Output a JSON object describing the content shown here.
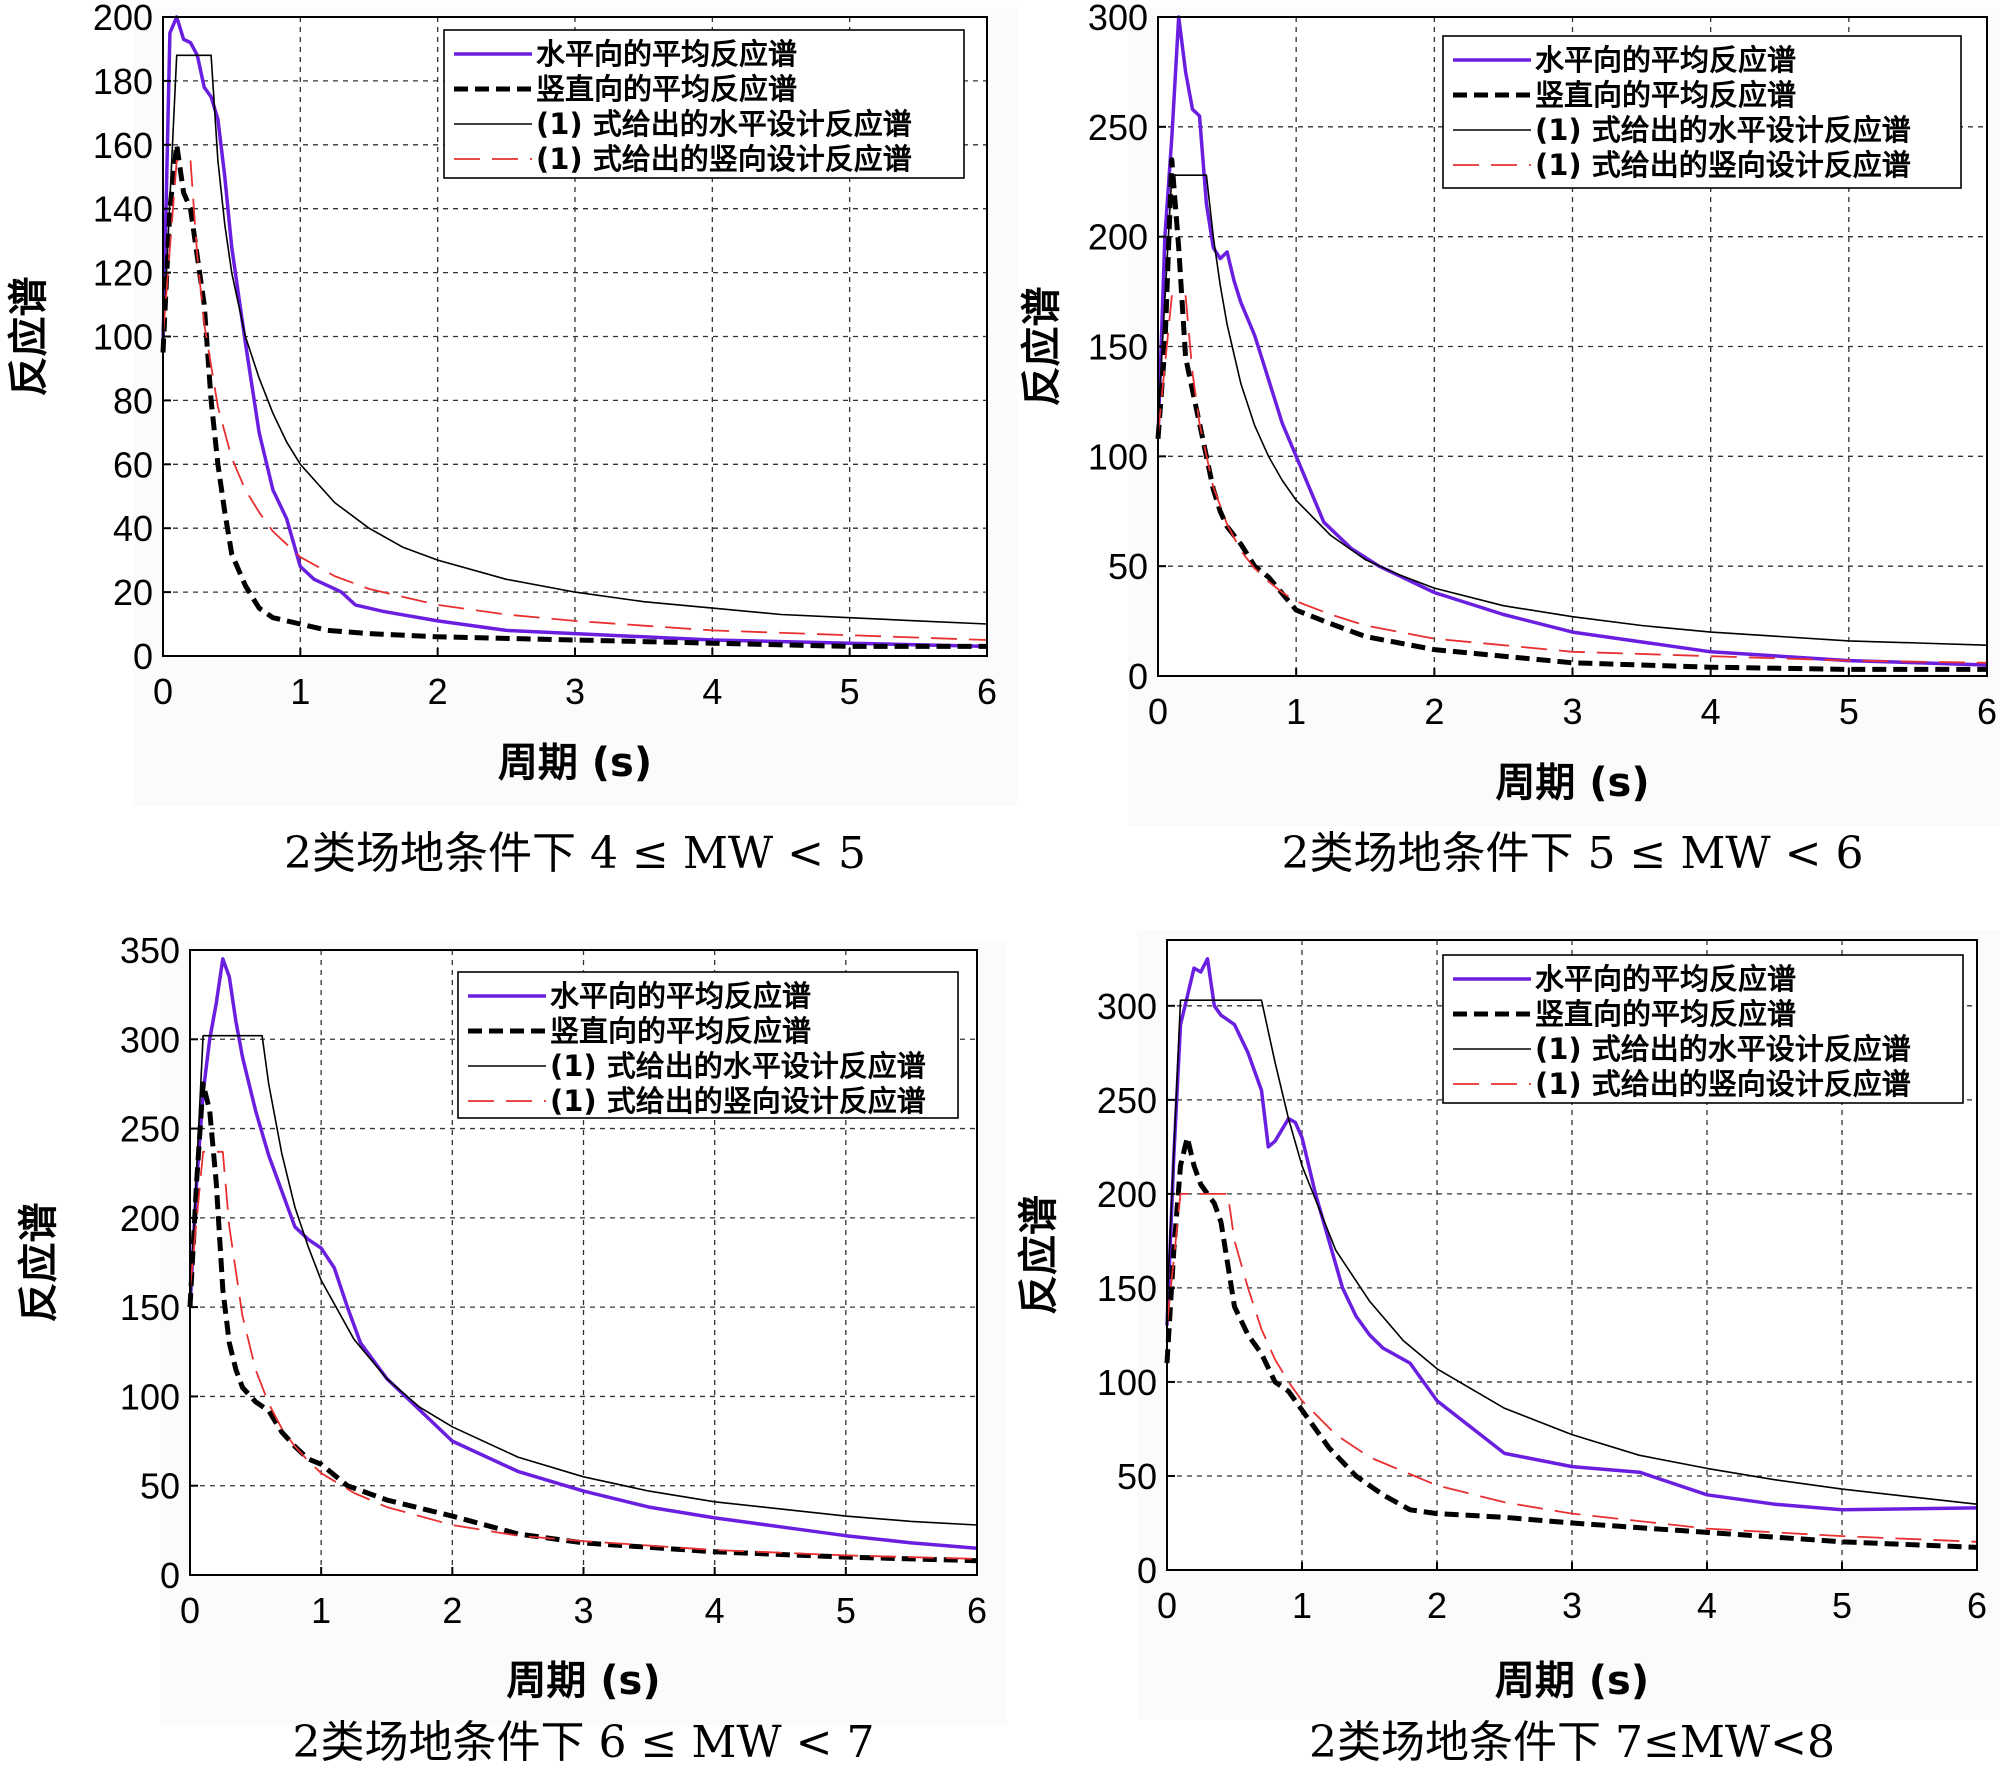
{
  "chart_data": [
    {
      "type": "line",
      "caption": "2类场地条件下 4 ≤ MW < 5",
      "xlabel": "周期 (s)",
      "ylabel": "反应谱",
      "xlim": [
        0,
        6
      ],
      "ylim": [
        0,
        200
      ],
      "xticks": [
        "0",
        "1",
        "2",
        "3",
        "4",
        "5",
        "6"
      ],
      "yticks": [
        "0",
        "20",
        "40",
        "60",
        "80",
        "100",
        "120",
        "140",
        "160",
        "180",
        "200"
      ],
      "grid": true,
      "legend_position": "top-right",
      "series": [
        {
          "name": "水平向的平均反应谱",
          "color": "#6a1fe0",
          "style": "solid-thick",
          "x": [
            0,
            0.05,
            0.1,
            0.15,
            0.2,
            0.25,
            0.3,
            0.35,
            0.4,
            0.45,
            0.5,
            0.6,
            0.7,
            0.8,
            0.9,
            1.0,
            1.1,
            1.2,
            1.3,
            1.4,
            1.6,
            2.0,
            2.5,
            3.0,
            4.0,
            5.0,
            6.0
          ],
          "y": [
            97,
            195,
            200,
            193,
            192,
            188,
            178,
            175,
            168,
            150,
            128,
            98,
            70,
            52,
            43,
            28,
            24,
            22,
            20,
            16,
            14,
            11,
            8,
            7,
            5,
            4,
            3
          ]
        },
        {
          "name": "竖直向的平均反应谱",
          "color": "#000000",
          "style": "dashed-thick",
          "x": [
            0,
            0.05,
            0.1,
            0.15,
            0.2,
            0.25,
            0.3,
            0.35,
            0.4,
            0.45,
            0.5,
            0.6,
            0.7,
            0.8,
            1.0,
            1.2,
            1.5,
            2.0,
            3.0,
            4.0,
            5.0,
            6.0
          ],
          "y": [
            95,
            140,
            160,
            145,
            140,
            125,
            110,
            80,
            60,
            45,
            32,
            22,
            15,
            12,
            10,
            8,
            7,
            6,
            5,
            4,
            3,
            3
          ]
        },
        {
          "name": "(1) 式给出的水平设计反应谱",
          "color": "#000000",
          "style": "solid-thin",
          "x": [
            0,
            0.1,
            0.35,
            0.4,
            0.45,
            0.5,
            0.6,
            0.7,
            0.8,
            0.9,
            1.0,
            1.25,
            1.5,
            1.75,
            2.0,
            2.5,
            3.0,
            3.5,
            4.0,
            4.5,
            5.0,
            5.5,
            6.0
          ],
          "y": [
            97,
            188,
            188,
            155,
            135,
            120,
            100,
            87,
            76,
            67,
            60,
            48,
            40,
            34,
            30,
            24,
            20,
            17,
            15,
            13,
            12,
            11,
            10
          ]
        },
        {
          "name": "(1) 式给出的竖向设计反应谱",
          "color": "#e83030",
          "style": "dashed-thin",
          "x": [
            0,
            0.1,
            0.2,
            0.25,
            0.3,
            0.4,
            0.5,
            0.6,
            0.7,
            0.8,
            0.9,
            1.0,
            1.25,
            1.5,
            2.0,
            2.5,
            3.0,
            4.0,
            5.0,
            6.0
          ],
          "y": [
            100,
            155,
            155,
            125,
            104,
            78,
            62,
            52,
            45,
            39,
            35,
            31,
            25,
            21,
            16,
            13,
            11,
            8,
            6.5,
            5
          ]
        }
      ]
    },
    {
      "type": "line",
      "caption": "2类场地条件下 5 ≤ MW < 6",
      "xlabel": "周期 (s)",
      "ylabel": "反应谱",
      "xlim": [
        0,
        6
      ],
      "ylim": [
        0,
        300
      ],
      "xticks": [
        "0",
        "1",
        "2",
        "3",
        "4",
        "5",
        "6"
      ],
      "yticks": [
        "0",
        "50",
        "100",
        "150",
        "200",
        "250",
        "300"
      ],
      "grid": true,
      "legend_position": "top-right",
      "series": [
        {
          "name": "水平向的平均反应谱",
          "color": "#6a1fe0",
          "style": "solid-thick",
          "x": [
            0,
            0.05,
            0.1,
            0.15,
            0.2,
            0.25,
            0.3,
            0.35,
            0.4,
            0.45,
            0.5,
            0.55,
            0.6,
            0.7,
            0.8,
            0.9,
            1.0,
            1.1,
            1.2,
            1.4,
            1.6,
            2.0,
            2.5,
            3.0,
            4.0,
            5.0,
            6.0
          ],
          "y": [
            108,
            200,
            245,
            300,
            275,
            258,
            255,
            215,
            195,
            190,
            193,
            180,
            170,
            155,
            135,
            115,
            100,
            85,
            70,
            58,
            50,
            38,
            28,
            20,
            11,
            7,
            5
          ]
        },
        {
          "name": "竖直向的平均反应谱",
          "color": "#000000",
          "style": "dashed-thick",
          "x": [
            0,
            0.05,
            0.1,
            0.15,
            0.2,
            0.25,
            0.3,
            0.35,
            0.4,
            0.45,
            0.5,
            0.6,
            0.7,
            0.8,
            1.0,
            1.2,
            1.5,
            2.0,
            3.0,
            4.0,
            5.0,
            6.0
          ],
          "y": [
            108,
            150,
            235,
            195,
            145,
            130,
            115,
            100,
            85,
            75,
            68,
            60,
            50,
            45,
            30,
            25,
            18,
            12,
            6,
            4,
            3,
            3
          ]
        },
        {
          "name": "(1) 式给出的水平设计反应谱",
          "color": "#000000",
          "style": "solid-thin",
          "x": [
            0,
            0.1,
            0.35,
            0.4,
            0.45,
            0.5,
            0.6,
            0.7,
            0.8,
            0.9,
            1.0,
            1.25,
            1.5,
            1.75,
            2.0,
            2.5,
            3.0,
            3.5,
            4.0,
            4.5,
            5.0,
            5.5,
            6.0
          ],
          "y": [
            115,
            228,
            228,
            200,
            178,
            160,
            133,
            114,
            100,
            89,
            80,
            64,
            53,
            46,
            40,
            32,
            27,
            23,
            20,
            18,
            16,
            15,
            14
          ]
        },
        {
          "name": "(1) 式给出的竖向设计反应谱",
          "color": "#e83030",
          "style": "dashed-thin",
          "x": [
            0,
            0.1,
            0.2,
            0.25,
            0.3,
            0.4,
            0.5,
            0.6,
            0.7,
            0.8,
            0.9,
            1.0,
            1.25,
            1.5,
            2.0,
            2.5,
            3.0,
            4.0,
            5.0,
            6.0
          ],
          "y": [
            110,
            173,
            173,
            138,
            115,
            86,
            69,
            57,
            49,
            43,
            38,
            34,
            28,
            23,
            17,
            14,
            11,
            9,
            7,
            6
          ]
        }
      ]
    },
    {
      "type": "line",
      "caption": "2类场地条件下 6 ≤ MW < 7",
      "xlabel": "周期 (s)",
      "ylabel": "反应谱",
      "xlim": [
        0,
        6
      ],
      "ylim": [
        0,
        350
      ],
      "xticks": [
        "0",
        "1",
        "2",
        "3",
        "4",
        "5",
        "6"
      ],
      "yticks": [
        "0",
        "50",
        "100",
        "150",
        "200",
        "250",
        "300",
        "350"
      ],
      "grid": true,
      "legend_position": "top-right",
      "series": [
        {
          "name": "水平向的平均反应谱",
          "color": "#6a1fe0",
          "style": "solid-thick",
          "x": [
            0,
            0.05,
            0.1,
            0.15,
            0.2,
            0.25,
            0.3,
            0.35,
            0.4,
            0.5,
            0.6,
            0.7,
            0.8,
            0.9,
            1.0,
            1.1,
            1.2,
            1.3,
            1.5,
            2.0,
            2.5,
            3.0,
            3.5,
            4.0,
            4.5,
            5.0,
            5.5,
            6.0
          ],
          "y": [
            150,
            220,
            270,
            300,
            320,
            345,
            335,
            310,
            290,
            260,
            235,
            215,
            195,
            188,
            183,
            172,
            150,
            130,
            110,
            75,
            58,
            47,
            38,
            32,
            27,
            22,
            18,
            15
          ]
        },
        {
          "name": "竖直向的平均反应谱",
          "color": "#000000",
          "style": "dashed-thick",
          "x": [
            0,
            0.05,
            0.1,
            0.15,
            0.2,
            0.25,
            0.3,
            0.35,
            0.4,
            0.5,
            0.6,
            0.7,
            0.8,
            0.9,
            1.0,
            1.2,
            1.5,
            2.0,
            2.5,
            3.0,
            4.0,
            5.0,
            6.0
          ],
          "y": [
            150,
            220,
            275,
            260,
            220,
            160,
            130,
            115,
            105,
            97,
            92,
            80,
            72,
            65,
            62,
            50,
            42,
            33,
            23,
            18,
            13,
            10,
            8
          ]
        },
        {
          "name": "(1) 式给出的水平设计反应谱",
          "color": "#000000",
          "style": "solid-thin",
          "x": [
            0,
            0.1,
            0.55,
            0.6,
            0.7,
            0.8,
            0.9,
            1.0,
            1.25,
            1.5,
            1.75,
            2.0,
            2.5,
            3.0,
            3.5,
            4.0,
            4.5,
            5.0,
            5.5,
            6.0
          ],
          "y": [
            150,
            302,
            302,
            275,
            236,
            206,
            184,
            165,
            132,
            110,
            94,
            83,
            66,
            55,
            47,
            41,
            37,
            33,
            30,
            28
          ]
        },
        {
          "name": "(1) 式给出的竖向设计反应谱",
          "color": "#e83030",
          "style": "dashed-thin",
          "x": [
            0,
            0.1,
            0.25,
            0.3,
            0.4,
            0.5,
            0.6,
            0.7,
            0.8,
            0.9,
            1.0,
            1.25,
            1.5,
            2.0,
            2.5,
            3.0,
            4.0,
            5.0,
            6.0
          ],
          "y": [
            160,
            237,
            237,
            195,
            145,
            115,
            96,
            82,
            72,
            64,
            57,
            46,
            38,
            28,
            22,
            19,
            14,
            11,
            9
          ]
        }
      ]
    },
    {
      "type": "line",
      "caption": "2类场地条件下  7≤MW<8",
      "xlabel": "周期 (s)",
      "ylabel": "反应谱",
      "xlim": [
        0,
        6
      ],
      "ylim": [
        0,
        335
      ],
      "xticks": [
        "0",
        "1",
        "2",
        "3",
        "4",
        "5",
        "6"
      ],
      "yticks": [
        "0",
        "50",
        "100",
        "150",
        "200",
        "250",
        "300"
      ],
      "grid": true,
      "legend_position": "top-right",
      "series": [
        {
          "name": "水平向的平均反应谱",
          "color": "#6a1fe0",
          "style": "solid-thick",
          "x": [
            0,
            0.05,
            0.1,
            0.15,
            0.2,
            0.25,
            0.3,
            0.35,
            0.4,
            0.5,
            0.6,
            0.7,
            0.75,
            0.8,
            0.9,
            0.95,
            1.0,
            1.1,
            1.2,
            1.3,
            1.4,
            1.5,
            1.6,
            1.8,
            2.0,
            2.5,
            3.0,
            3.5,
            4.0,
            4.5,
            5.0,
            6.0
          ],
          "y": [
            130,
            220,
            290,
            305,
            320,
            318,
            325,
            300,
            295,
            290,
            275,
            255,
            225,
            228,
            240,
            238,
            230,
            200,
            175,
            150,
            135,
            125,
            118,
            110,
            90,
            62,
            55,
            52,
            40,
            35,
            32,
            33
          ]
        },
        {
          "name": "竖直向的平均反应谱",
          "color": "#000000",
          "style": "dashed-thick",
          "x": [
            0,
            0.05,
            0.1,
            0.15,
            0.2,
            0.25,
            0.3,
            0.35,
            0.4,
            0.5,
            0.6,
            0.7,
            0.8,
            0.9,
            1.0,
            1.2,
            1.4,
            1.6,
            1.8,
            2.0,
            2.5,
            3.0,
            4.0,
            5.0,
            6.0
          ],
          "y": [
            110,
            170,
            215,
            230,
            215,
            205,
            200,
            195,
            185,
            140,
            125,
            115,
            100,
            95,
            85,
            65,
            50,
            40,
            32,
            30,
            28,
            25,
            20,
            15,
            12
          ]
        },
        {
          "name": "(1) 式给出的水平设计反应谱",
          "color": "#000000",
          "style": "solid-thin",
          "x": [
            0,
            0.1,
            0.7,
            0.8,
            0.9,
            1.0,
            1.25,
            1.5,
            1.75,
            2.0,
            2.5,
            3.0,
            3.5,
            4.0,
            4.5,
            5.0,
            5.5,
            6.0
          ],
          "y": [
            140,
            303,
            303,
            270,
            240,
            215,
            170,
            143,
            122,
            107,
            86,
            72,
            61,
            54,
            48,
            43,
            39,
            35
          ]
        },
        {
          "name": "(1) 式给出的竖向设计反应谱",
          "color": "#e83030",
          "style": "dashed-thin",
          "x": [
            0,
            0.1,
            0.45,
            0.5,
            0.6,
            0.7,
            0.8,
            0.9,
            1.0,
            1.25,
            1.5,
            2.0,
            2.5,
            3.0,
            3.5,
            4.0,
            5.0,
            6.0
          ],
          "y": [
            130,
            200,
            200,
            175,
            150,
            128,
            112,
            100,
            90,
            72,
            60,
            45,
            36,
            30,
            26,
            22,
            18,
            15
          ]
        }
      ]
    }
  ]
}
